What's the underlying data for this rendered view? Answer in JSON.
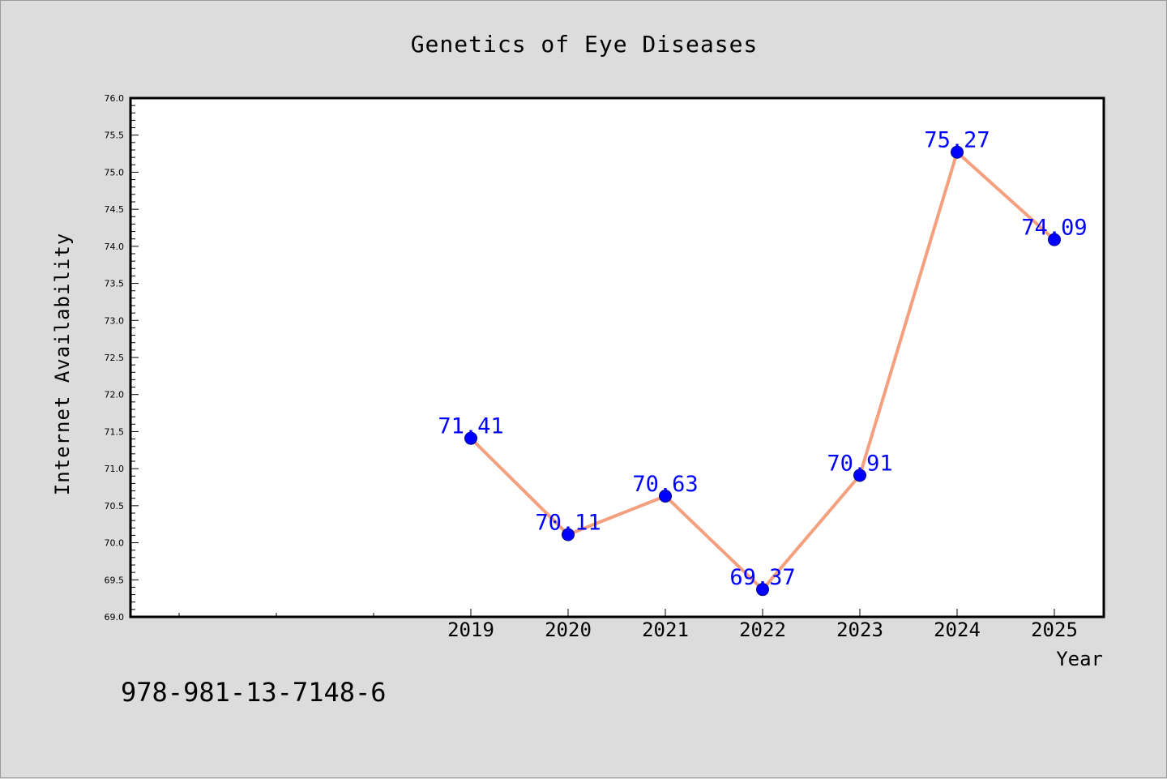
{
  "chart_data": {
    "type": "line",
    "title": "Genetics of Eye Diseases",
    "xlabel": "Year",
    "ylabel": "Internet Availability",
    "categories": [
      "2019",
      "2020",
      "2021",
      "2022",
      "2023",
      "2024",
      "2025"
    ],
    "series": [
      {
        "values": [
          71.41,
          70.11,
          70.63,
          69.37,
          70.91,
          75.27,
          74.09
        ],
        "labels": [
          "71.41",
          "70.11",
          "70.63",
          "69.37",
          "70.91",
          "75.27",
          "74.09"
        ]
      }
    ],
    "ylim": [
      69.0,
      76.0
    ],
    "yticks": [
      "69.0",
      "69.5",
      "70.0",
      "70.5",
      "71.0",
      "71.5",
      "72.0",
      "72.5",
      "73.0",
      "73.5",
      "74.0",
      "74.5",
      "75.0",
      "75.5",
      "76.0"
    ],
    "grid": false,
    "colors": {
      "line": "#f4a07e",
      "marker": "#0000ff",
      "label": "#0000ff",
      "plot_bg": "#ffffff",
      "figure_bg": "#dcdcdc"
    }
  },
  "footer_text": "978-981-13-7148-6"
}
